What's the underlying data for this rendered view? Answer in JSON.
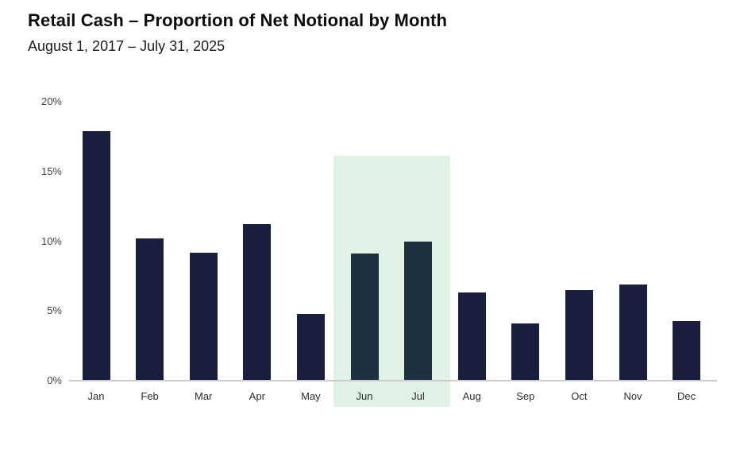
{
  "header": {
    "title": "Retail Cash – Proportion of Net Notional by Month",
    "subtitle": "August 1, 2017 – July 31, 2025"
  },
  "chart_data": {
    "type": "bar",
    "title": "Retail Cash – Proportion of Net Notional by Month",
    "subtitle": "August 1, 2017 – July 31, 2025",
    "categories": [
      "Jan",
      "Feb",
      "Mar",
      "Apr",
      "May",
      "Jun",
      "Jul",
      "Aug",
      "Sep",
      "Oct",
      "Nov",
      "Dec"
    ],
    "values": [
      17.9,
      10.2,
      9.2,
      11.2,
      4.8,
      9.1,
      10.0,
      6.3,
      4.1,
      6.5,
      6.9,
      4.3
    ],
    "unit": "%",
    "xlabel": "",
    "ylabel": "",
    "ylim": [
      0,
      20
    ],
    "yticks": [
      {
        "value": 0,
        "label": "0%"
      },
      {
        "value": 5,
        "label": "5%"
      },
      {
        "value": 10,
        "label": "10%"
      },
      {
        "value": 15,
        "label": "15%"
      },
      {
        "value": 20,
        "label": "20%"
      }
    ],
    "grid": false,
    "legend": "none",
    "highlight": {
      "from_category": "Jun",
      "to_category": "Jul",
      "top_value": 16.1,
      "color": "#e0f1e5"
    },
    "colors": {
      "bar": "#191e3e",
      "bar_highlighted": "#1e3140",
      "axis_line": "#cbcbcb",
      "tick_label": "#3f3f3f"
    }
  }
}
